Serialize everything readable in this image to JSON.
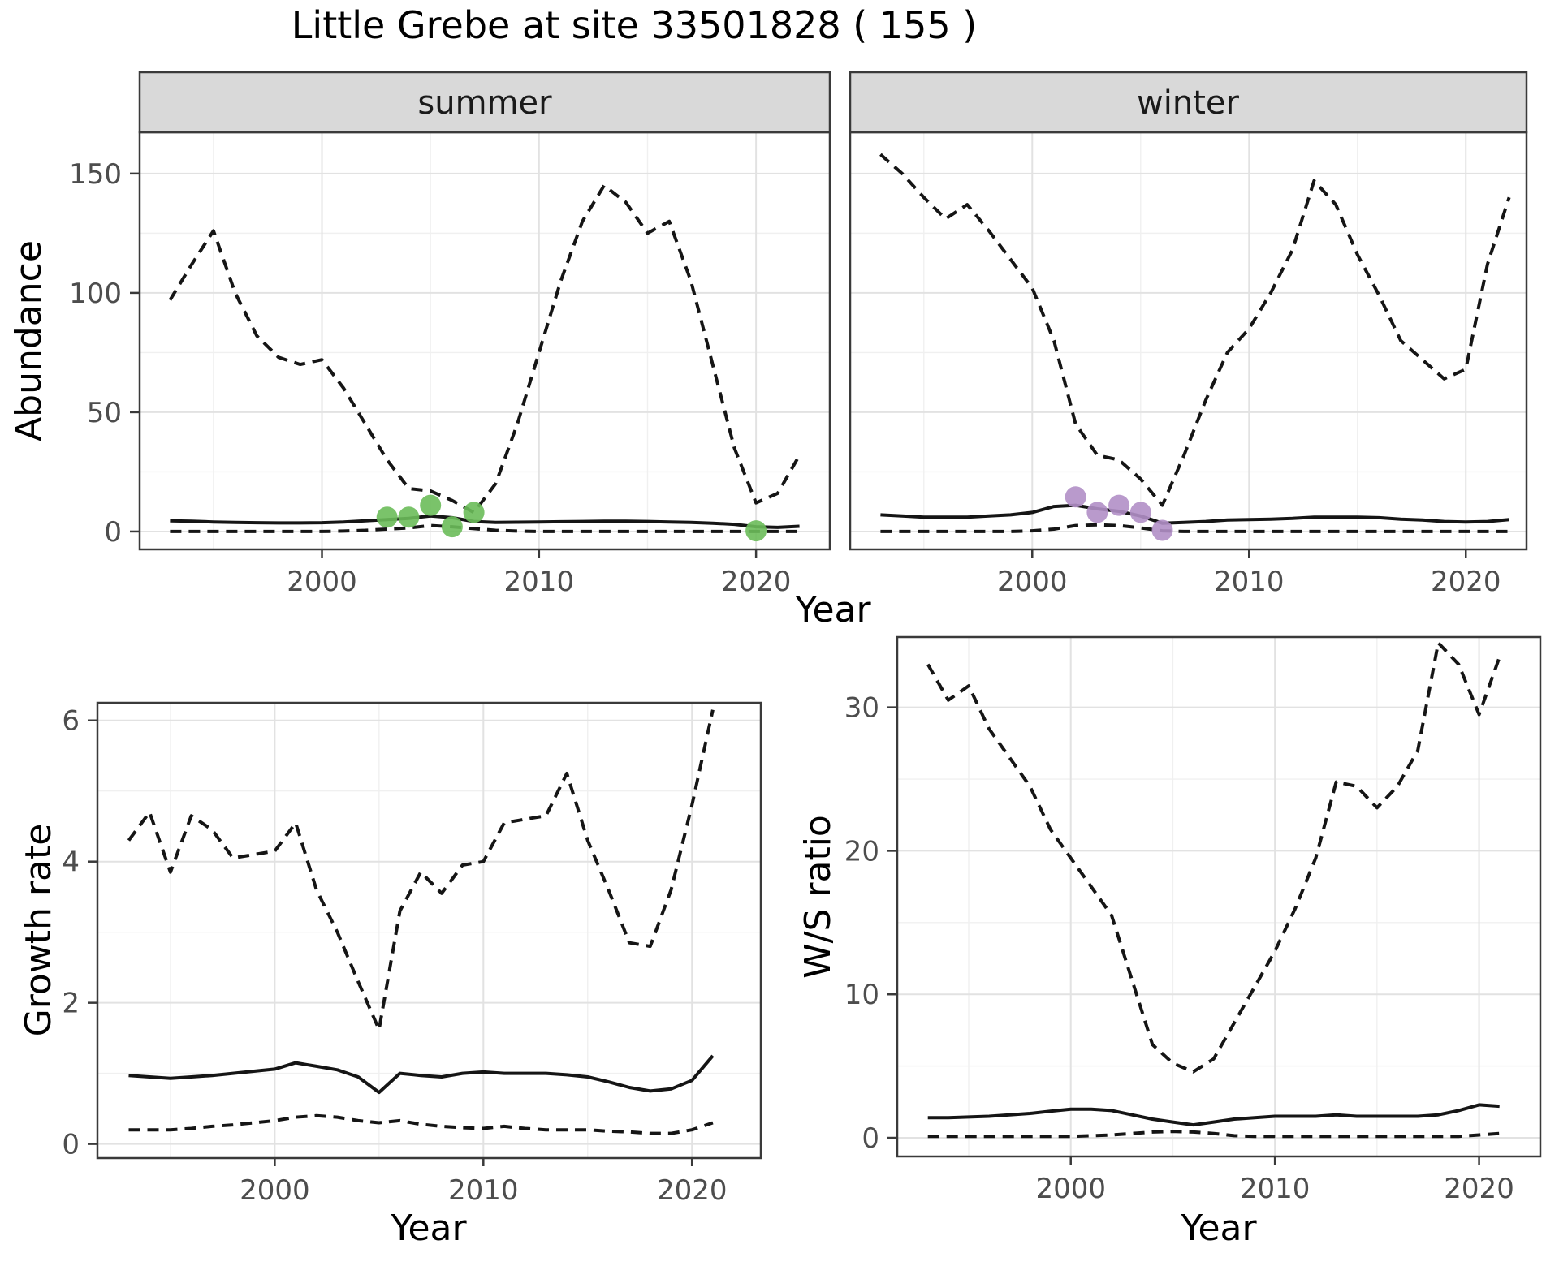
{
  "title": "Little Grebe at site 33501828 ( 155 )",
  "year_label": "Year",
  "facets": {
    "summer": "summer",
    "winter": "winter"
  },
  "axis_titles": {
    "abundance": "Abundance",
    "growth_rate": "Growth rate",
    "ws_ratio": "W/S ratio"
  },
  "colors": {
    "summer_point": "#6cbd5a",
    "winter_point": "#b18fc7",
    "line": "#151515",
    "grid_major": "#e2e2e2",
    "grid_minor": "#f0f0f0",
    "strip_bg": "#d9d9d9",
    "panel_border": "#3a3a3a",
    "tick_label": "#4d4d4d"
  },
  "chart_data": [
    {
      "id": "abundance-summer",
      "type": "line",
      "facet": "summer",
      "ylabel": "Abundance",
      "xlabel": "Year",
      "x_range": [
        1993,
        2022
      ],
      "xlim": [
        1991.6,
        2023.4
      ],
      "ylim": [
        -7.5,
        167.3
      ],
      "xticks": [
        2000,
        2010,
        2020
      ],
      "xticks_minor": [
        1995,
        2005,
        2015
      ],
      "yticks": [
        0,
        50,
        100,
        150
      ],
      "yticks_minor": [
        25,
        75,
        125
      ],
      "legend": "off",
      "grid": "on",
      "series": [
        {
          "name": "upper_95ci",
          "style": "dashed",
          "values": [
            97,
            112,
            126,
            100,
            82,
            73,
            70,
            72,
            60,
            45,
            30,
            18,
            17,
            13,
            8,
            20,
            45,
            75,
            105,
            130,
            145,
            138,
            125,
            130,
            105,
            70,
            35,
            12,
            16,
            32
          ]
        },
        {
          "name": "median",
          "style": "solid",
          "values": [
            4.5,
            4.3,
            4.0,
            3.8,
            3.7,
            3.6,
            3.6,
            3.7,
            4.0,
            4.5,
            5.0,
            5.5,
            6.5,
            5.8,
            4.2,
            3.8,
            3.9,
            4.0,
            4.1,
            4.2,
            4.3,
            4.3,
            4.2,
            4.0,
            3.8,
            3.5,
            3.0,
            2.0,
            1.7,
            2.2
          ]
        },
        {
          "name": "lower_95ci",
          "style": "dashed",
          "values": [
            0,
            0,
            0,
            0,
            0,
            0,
            0,
            0,
            0.2,
            0.5,
            1.0,
            1.5,
            2.5,
            2.0,
            1.2,
            0.5,
            0.2,
            0,
            0,
            0,
            0,
            0,
            0,
            0,
            0,
            0,
            0,
            0,
            0,
            0
          ]
        }
      ],
      "observed_points": {
        "color_key": "summer_point",
        "x": [
          2003,
          2004,
          2005,
          2006,
          2007,
          2020
        ],
        "y": [
          6,
          6,
          11,
          2,
          8,
          0.3
        ]
      }
    },
    {
      "id": "abundance-winter",
      "type": "line",
      "facet": "winter",
      "ylabel": "Abundance",
      "xlabel": "Year",
      "x_range": [
        1993,
        2022
      ],
      "xlim": [
        1991.6,
        2022.8
      ],
      "ylim": [
        -7.5,
        167.3
      ],
      "xticks": [
        2000,
        2010,
        2020
      ],
      "xticks_minor": [
        1995,
        2005,
        2015
      ],
      "yticks": [
        0,
        50,
        100,
        150
      ],
      "yticks_minor": [
        25,
        75,
        125
      ],
      "legend": "off",
      "grid": "on",
      "series": [
        {
          "name": "upper_95ci",
          "style": "dashed",
          "values": [
            158,
            150,
            140,
            131,
            137,
            126,
            114,
            102,
            80,
            45,
            32,
            30,
            22,
            11,
            32,
            55,
            75,
            85,
            100,
            118,
            147,
            137,
            116,
            99,
            80,
            72,
            64,
            68,
            112,
            140
          ]
        },
        {
          "name": "median",
          "style": "solid",
          "values": [
            7,
            6.5,
            6,
            6,
            6,
            6.5,
            7,
            8,
            10.5,
            11,
            9.5,
            8.5,
            6.5,
            3.5,
            3.8,
            4.2,
            4.8,
            5,
            5.2,
            5.5,
            6,
            6,
            6,
            5.8,
            5.2,
            4.8,
            4.2,
            4,
            4.2,
            5
          ]
        },
        {
          "name": "lower_95ci",
          "style": "dashed",
          "values": [
            0,
            0,
            0,
            0,
            0,
            0,
            0,
            0.3,
            1,
            2.5,
            2.8,
            2.5,
            1.5,
            0.3,
            0,
            0,
            0,
            0,
            0,
            0,
            0,
            0,
            0,
            0,
            0,
            0,
            0,
            0,
            0,
            0
          ]
        }
      ],
      "observed_points": {
        "color_key": "winter_point",
        "x": [
          2002,
          2003,
          2004,
          2005,
          2006
        ],
        "y": [
          14.5,
          8,
          11,
          8,
          0.5
        ]
      }
    },
    {
      "id": "growth-rate",
      "type": "line",
      "facet": null,
      "ylabel": "Growth rate",
      "xlabel": "Year",
      "x_range": [
        1993,
        2021
      ],
      "xlim": [
        1991.5,
        2023.3
      ],
      "ylim": [
        -0.2,
        6.25
      ],
      "xticks": [
        2000,
        2010,
        2020
      ],
      "xticks_minor": [
        1995,
        2005,
        2015
      ],
      "yticks": [
        0,
        2,
        4,
        6
      ],
      "yticks_minor": [
        1,
        3,
        5
      ],
      "legend": "off",
      "grid": "on",
      "series": [
        {
          "name": "upper_95ci",
          "style": "dashed",
          "values": [
            4.3,
            4.7,
            3.85,
            4.65,
            4.45,
            4.05,
            4.1,
            4.15,
            4.55,
            3.6,
            3.0,
            2.3,
            1.62,
            3.3,
            3.85,
            3.55,
            3.95,
            4.0,
            4.55,
            4.6,
            4.65,
            5.25,
            4.3,
            3.6,
            2.85,
            2.8,
            3.6,
            4.8,
            6.15
          ]
        },
        {
          "name": "median",
          "style": "solid",
          "values": [
            0.97,
            0.95,
            0.93,
            0.95,
            0.97,
            1.0,
            1.03,
            1.06,
            1.15,
            1.1,
            1.05,
            0.95,
            0.73,
            1.0,
            0.97,
            0.95,
            1.0,
            1.02,
            1.0,
            1.0,
            1.0,
            0.98,
            0.95,
            0.88,
            0.8,
            0.75,
            0.78,
            0.9,
            1.25
          ]
        },
        {
          "name": "lower_95ci",
          "style": "dashed",
          "values": [
            0.2,
            0.2,
            0.2,
            0.22,
            0.25,
            0.27,
            0.3,
            0.33,
            0.38,
            0.4,
            0.38,
            0.33,
            0.3,
            0.33,
            0.28,
            0.25,
            0.23,
            0.22,
            0.25,
            0.22,
            0.2,
            0.2,
            0.2,
            0.18,
            0.17,
            0.15,
            0.15,
            0.2,
            0.3
          ]
        }
      ],
      "observed_points": null
    },
    {
      "id": "ws-ratio",
      "type": "line",
      "facet": null,
      "ylabel": "W/S ratio",
      "xlabel": "Year",
      "x_range": [
        1993,
        2021
      ],
      "xlim": [
        1991.5,
        2023.0
      ],
      "ylim": [
        -1.3,
        34.9
      ],
      "xticks": [
        2000,
        2010,
        2020
      ],
      "xticks_minor": [
        1995,
        2005,
        2015
      ],
      "yticks": [
        0,
        10,
        20,
        30
      ],
      "yticks_minor": [
        5,
        15,
        25
      ],
      "legend": "off",
      "grid": "on",
      "series": [
        {
          "name": "upper_95ci",
          "style": "dashed",
          "values": [
            33,
            30.5,
            31.5,
            28.5,
            26.5,
            24.5,
            21.5,
            19.5,
            17.5,
            15.5,
            11,
            6.5,
            5.2,
            4.6,
            5.5,
            8,
            10.5,
            13,
            16,
            19.5,
            24.8,
            24.5,
            23,
            24.5,
            27,
            34.5,
            33,
            29.5,
            33.5
          ]
        },
        {
          "name": "median",
          "style": "solid",
          "values": [
            1.4,
            1.4,
            1.45,
            1.5,
            1.6,
            1.7,
            1.85,
            2.0,
            2.0,
            1.9,
            1.6,
            1.3,
            1.1,
            0.9,
            1.1,
            1.3,
            1.4,
            1.5,
            1.5,
            1.5,
            1.6,
            1.5,
            1.5,
            1.5,
            1.5,
            1.6,
            1.9,
            2.3,
            2.2
          ]
        },
        {
          "name": "lower_95ci",
          "style": "dashed",
          "values": [
            0.1,
            0.1,
            0.1,
            0.1,
            0.1,
            0.1,
            0.1,
            0.1,
            0.15,
            0.2,
            0.3,
            0.4,
            0.45,
            0.4,
            0.3,
            0.15,
            0.1,
            0.1,
            0.1,
            0.1,
            0.1,
            0.1,
            0.1,
            0.1,
            0.1,
            0.1,
            0.1,
            0.2,
            0.3
          ]
        }
      ],
      "observed_points": null
    }
  ]
}
